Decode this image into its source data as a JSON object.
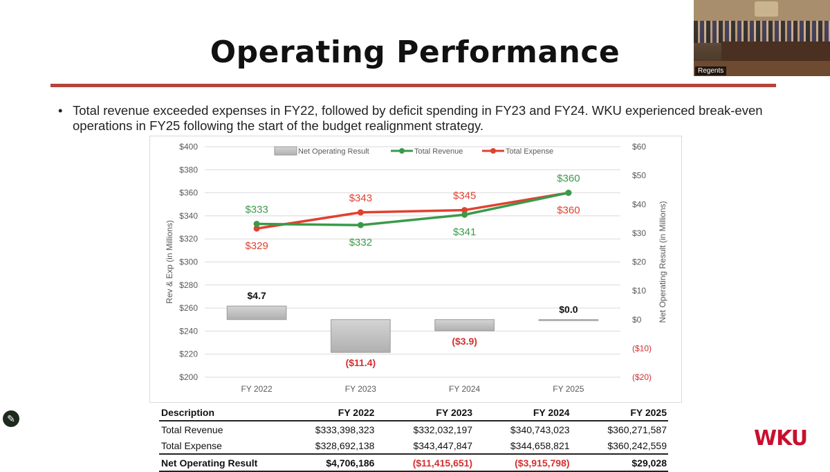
{
  "slide": {
    "title": "Operating Performance",
    "bullet_marker": "•",
    "bullet_text": "Total revenue exceeded expenses in FY22, followed by deficit spending in FY23 and FY24. WKU experienced break-even operations in FY25 following the start of the budget realignment strategy.",
    "logo_text": "WKU",
    "video_label": "Regents",
    "pen_icon": "✎"
  },
  "colors": {
    "rule": "#b5443a",
    "revenue": "#3a9a4a",
    "expense": "#e0412f",
    "bar": "#c4c4c4",
    "negative": "#d32f2f"
  },
  "chart_data": {
    "type": "bar+line",
    "categories": [
      "FY 2022",
      "FY 2023",
      "FY 2024",
      "FY 2025"
    ],
    "series": [
      {
        "name": "Net Operating Result",
        "type": "bar",
        "axis": "right",
        "values": [
          4.7,
          -11.4,
          -3.9,
          0.0
        ],
        "labels": [
          "$4.7",
          "($11.4)",
          "($3.9)",
          "$0.0"
        ]
      },
      {
        "name": "Total Revenue",
        "type": "line",
        "axis": "left",
        "values": [
          333,
          332,
          341,
          360
        ],
        "labels": [
          "$333",
          "$332",
          "$341",
          "$360"
        ]
      },
      {
        "name": "Total Expense",
        "type": "line",
        "axis": "left",
        "values": [
          329,
          343,
          345,
          360
        ],
        "labels": [
          "$329",
          "$343",
          "$345",
          "$360"
        ]
      }
    ],
    "ylabel": "Rev & Exp (in Millions)",
    "ylabel_right": "Net Operating Result (in Millions)",
    "ylim": [
      200,
      400
    ],
    "ylim_right": [
      -20,
      60
    ],
    "y_ticks": [
      "$200",
      "$220",
      "$240",
      "$260",
      "$280",
      "$300",
      "$320",
      "$340",
      "$360",
      "$380",
      "$400"
    ],
    "y_right_ticks": [
      "($20)",
      "($10)",
      "$0",
      "$10",
      "$20",
      "$30",
      "$40",
      "$50",
      "$60"
    ],
    "grid": true,
    "legend_position": "top"
  },
  "table": {
    "headers": [
      "Description",
      "FY 2022",
      "FY 2023",
      "FY 2024",
      "FY 2025"
    ],
    "rows": [
      [
        "Total Revenue",
        "$333,398,323",
        "$332,032,197",
        "$340,743,023",
        "$360,271,587"
      ],
      [
        "Total Expense",
        "$328,692,138",
        "$343,447,847",
        "$344,658,821",
        "$360,242,559"
      ]
    ],
    "total": [
      "Net Operating Result",
      "$4,706,186",
      "($11,415,651)",
      "($3,915,798)",
      "$29,028"
    ]
  }
}
